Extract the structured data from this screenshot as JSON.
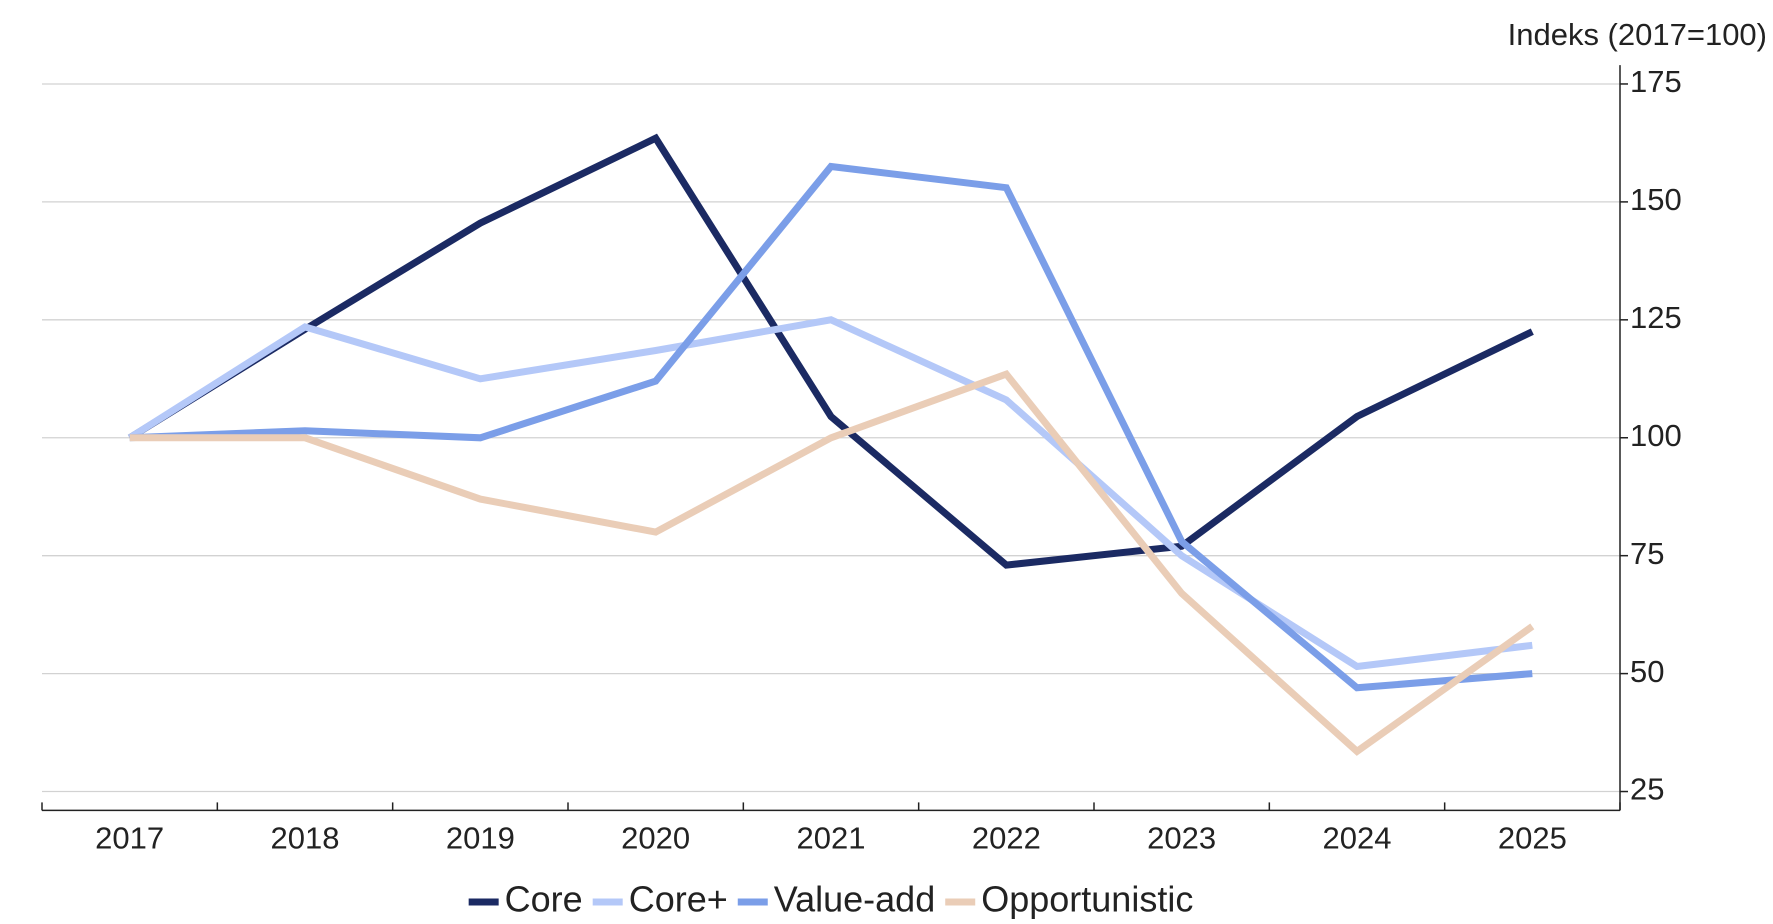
{
  "chart_data": {
    "type": "line",
    "y_axis_label": "Indeks (2017=100)",
    "categories": [
      "2017",
      "2018",
      "2019",
      "2020",
      "2021",
      "2022",
      "2023",
      "2024",
      "2025"
    ],
    "series": [
      {
        "name": "Core",
        "color": "#1b2a63",
        "values": [
          100,
          123,
          145.5,
          163.5,
          104.5,
          73,
          77,
          104.5,
          122.5
        ]
      },
      {
        "name": "Core+",
        "color": "#b4c8f8",
        "values": [
          100,
          123.5,
          112.5,
          118.5,
          125,
          108,
          75,
          51.5,
          56
        ]
      },
      {
        "name": "Value-add",
        "color": "#7b9ee8",
        "values": [
          100,
          101.5,
          100,
          112,
          157.5,
          153,
          78,
          47,
          50
        ]
      },
      {
        "name": "Opportunistic",
        "color": "#eacdb7",
        "values": [
          100,
          100,
          87,
          80,
          100,
          113.5,
          67,
          33.5,
          60
        ]
      }
    ],
    "ylim": [
      21,
      179
    ],
    "yticks": [
      25,
      50,
      75,
      100,
      125,
      150,
      175
    ],
    "grid": true,
    "y_axis_side": "right",
    "legend": "bottom"
  }
}
